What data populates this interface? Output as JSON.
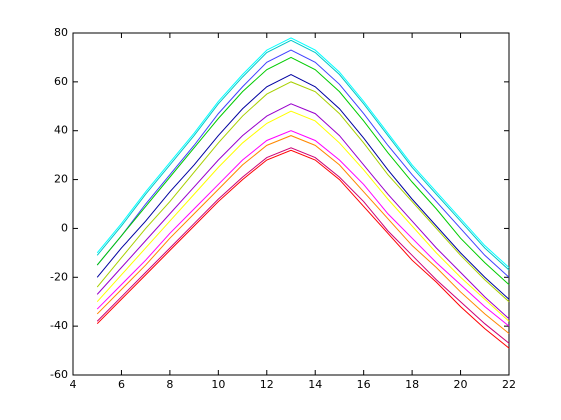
{
  "chart_data": {
    "type": "line",
    "x": [
      5,
      6,
      7,
      8,
      9,
      10,
      11,
      12,
      13,
      14,
      15,
      16,
      17,
      18,
      19,
      20,
      21,
      22
    ],
    "xlim": [
      4,
      22
    ],
    "xticks": [
      4,
      6,
      8,
      10,
      12,
      14,
      16,
      18,
      20,
      22
    ],
    "ylim": [
      -60,
      80
    ],
    "yticks": [
      -60,
      -40,
      -20,
      0,
      20,
      40,
      60,
      80
    ],
    "grid": false,
    "series": [
      {
        "color": "#00ffff",
        "values": [
          -10,
          2,
          15,
          27,
          39,
          52,
          63,
          73,
          78,
          73,
          64,
          52,
          39,
          26,
          15,
          4,
          -7,
          -16
        ]
      },
      {
        "color": "#00c8c8",
        "values": [
          -11,
          1,
          14,
          26,
          38,
          51,
          62,
          72,
          77,
          72,
          63,
          51,
          38,
          25,
          14,
          3,
          -8,
          -17
        ]
      },
      {
        "color": "#4040ff",
        "values": [
          -15,
          -3,
          10,
          22,
          34,
          47,
          58,
          68,
          73,
          68,
          59,
          47,
          34,
          22,
          11,
          0,
          -11,
          -20
        ]
      },
      {
        "color": "#00cc00",
        "values": [
          -15,
          -3,
          9,
          21,
          33,
          45,
          56,
          65,
          70,
          65,
          56,
          44,
          31,
          19,
          8,
          -4,
          -14,
          -23
        ]
      },
      {
        "color": "#0000a0",
        "values": [
          -20,
          -8,
          3,
          15,
          26,
          38,
          49,
          58,
          63,
          58,
          49,
          37,
          24,
          12,
          1,
          -10,
          -20,
          -29
        ]
      },
      {
        "color": "#a8d000",
        "values": [
          -24,
          -12,
          0,
          11,
          23,
          35,
          46,
          55,
          60,
          56,
          47,
          35,
          22,
          11,
          0,
          -11,
          -21,
          -30
        ]
      },
      {
        "color": "#9900cc",
        "values": [
          -27,
          -16,
          -5,
          6,
          17,
          28,
          38,
          46,
          51,
          47,
          38,
          26,
          14,
          3,
          -8,
          -18,
          -28,
          -37
        ]
      },
      {
        "color": "#ffff00",
        "values": [
          -30,
          -19,
          -8,
          3,
          14,
          25,
          35,
          43,
          48,
          44,
          35,
          24,
          12,
          1,
          -10,
          -20,
          -29,
          -38
        ]
      },
      {
        "color": "#ff00ff",
        "values": [
          -33,
          -23,
          -13,
          -2,
          8,
          18,
          28,
          36,
          40,
          36,
          28,
          18,
          6,
          -4,
          -14,
          -23,
          -32,
          -40
        ]
      },
      {
        "color": "#ff8800",
        "values": [
          -35,
          -25,
          -15,
          -4,
          6,
          16,
          26,
          34,
          38,
          34,
          26,
          15,
          4,
          -7,
          -16,
          -26,
          -35,
          -43
        ]
      },
      {
        "color": "#cc0077",
        "values": [
          -38,
          -28,
          -18,
          -8,
          2,
          12,
          21,
          29,
          33,
          29,
          21,
          11,
          -1,
          -11,
          -21,
          -30,
          -39,
          -47
        ]
      },
      {
        "color": "#ff0000",
        "values": [
          -39,
          -29,
          -19,
          -9,
          1,
          11,
          20,
          28,
          32,
          28,
          20,
          9,
          -2,
          -13,
          -22,
          -32,
          -41,
          -49
        ]
      }
    ]
  }
}
